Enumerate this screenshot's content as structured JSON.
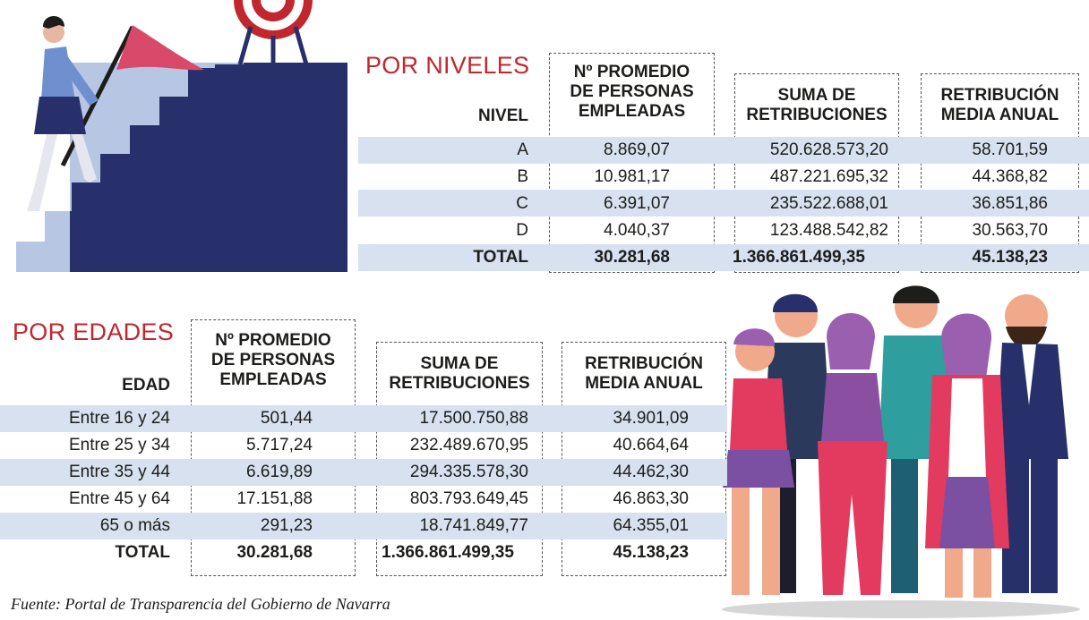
{
  "niveles": {
    "title": "POR NIVELES",
    "row_header": "NIVEL",
    "columns": [
      [
        "Nº PROMEDIO",
        "DE PERSONAS",
        "EMPLEADAS"
      ],
      [
        "SUMA DE",
        "RETRIBUCIONES"
      ],
      [
        "RETRIBUCIÓN",
        "MEDIA ANUAL"
      ]
    ],
    "rows": [
      {
        "label": "A",
        "empleados": "8.869,07",
        "suma": "520.628.573,20",
        "media": "58.701,59"
      },
      {
        "label": "B",
        "empleados": "10.981,17",
        "suma": "487.221.695,32",
        "media": "44.368,82"
      },
      {
        "label": "C",
        "empleados": "6.391,07",
        "suma": "235.522.688,01",
        "media": "36.851,86"
      },
      {
        "label": "D",
        "empleados": "4.040,37",
        "suma": "123.488.542,82",
        "media": "30.563,70"
      }
    ],
    "total": {
      "label": "TOTAL",
      "empleados": "30.281,68",
      "suma": "1.366.861.499,35",
      "media": "45.138,23"
    }
  },
  "edades": {
    "title": "POR EDADES",
    "row_header": "EDAD",
    "columns": [
      [
        "Nº PROMEDIO",
        "DE PERSONAS",
        "EMPLEADAS"
      ],
      [
        "SUMA DE",
        "RETRIBUCIONES"
      ],
      [
        "RETRIBUCIÓN",
        "MEDIA ANUAL"
      ]
    ],
    "rows": [
      {
        "label": "Entre 16 y 24",
        "empleados": "501,44",
        "suma": "17.500.750,88",
        "media": "34.901,09"
      },
      {
        "label": "Entre 25 y 34",
        "empleados": "5.717,24",
        "suma": "232.489.670,95",
        "media": "40.664,64"
      },
      {
        "label": "Entre 35 y 44",
        "empleados": "6.619,89",
        "suma": "294.335.578,30",
        "media": "44.462,30"
      },
      {
        "label": "Entre 45 y 64",
        "empleados": "17.151,88",
        "suma": "803.793.649,45",
        "media": "46.863,30"
      },
      {
        "label": "65 o más",
        "empleados": "291,23",
        "suma": "18.741.849,77",
        "media": "64.355,01"
      }
    ],
    "total": {
      "label": "TOTAL",
      "empleados": "30.281,68",
      "suma": "1.366.861.499,35",
      "media": "45.138,23"
    }
  },
  "footer": "Fuente: Portal de Transparencia del Gobierno de Navarra",
  "colors": {
    "accent": "#c1272d",
    "band": "#d7e1ef",
    "navy": "#27306b"
  }
}
